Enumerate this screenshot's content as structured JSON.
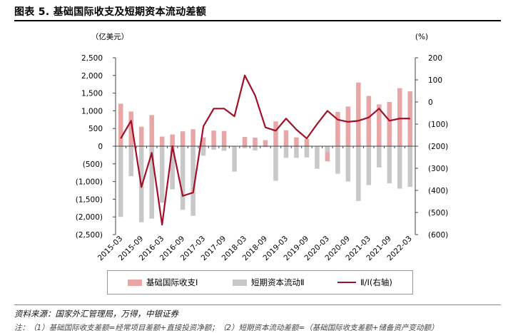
{
  "figure": {
    "title": "图表 5. 基础国际收支及短期资本流动差额",
    "source": "资料来源：国家外汇管理局，万得，中银证券",
    "note": "注：（1）基础国际收支差额=经常项目差额+直接投资净额；（2）短期资本流动差额=（基础国际收支差额+储备资产变动额）"
  },
  "chart_data": {
    "type": "bar",
    "left_unit": "（亿美元）",
    "right_unit": "(%)",
    "left_axis": {
      "ylim": [
        -2500,
        2500
      ],
      "ticks": [
        2500,
        2000,
        1500,
        1000,
        500,
        0,
        -500,
        -1000,
        -1500,
        -2000,
        -2500
      ],
      "tick_labels": [
        "2,500",
        "2,000",
        "1,500",
        "1,000",
        "500",
        "0",
        "(500)",
        "(1,000)",
        "(1,500)",
        "(2,000)",
        "(2,500)"
      ]
    },
    "right_axis": {
      "ylim": [
        -600,
        200
      ],
      "ticks": [
        200,
        100,
        0,
        -100,
        -200,
        -300,
        -400,
        -500,
        -600
      ],
      "tick_labels": [
        "200",
        "100",
        "0",
        "(100)",
        "(200)",
        "(300)",
        "(400)",
        "(500)",
        "(600)"
      ]
    },
    "categories": [
      "2015-03",
      "2015-06",
      "2015-09",
      "2015-12",
      "2016-03",
      "2016-06",
      "2016-09",
      "2016-12",
      "2017-03",
      "2017-06",
      "2017-09",
      "2017-12",
      "2018-03",
      "2018-06",
      "2018-09",
      "2018-12",
      "2019-03",
      "2019-06",
      "2019-09",
      "2019-12",
      "2020-03",
      "2020-06",
      "2020-09",
      "2020-12",
      "2021-03",
      "2021-06",
      "2021-09",
      "2021-12",
      "2022-03"
    ],
    "x_tick_labels": [
      "2015-03",
      "",
      "2015-09",
      "",
      "2016-03",
      "",
      "2016-09",
      "",
      "2017-03",
      "",
      "2017-09",
      "",
      "2018-03",
      "",
      "2018-09",
      "",
      "2019-03",
      "",
      "2019-09",
      "",
      "2020-03",
      "",
      "2020-09",
      "",
      "2021-03",
      "",
      "2021-09",
      "",
      "2022-03"
    ],
    "series": [
      {
        "name": "基础国际收支Ⅰ",
        "axis": "left",
        "kind": "bar",
        "color": "#e8a6a6",
        "values": [
          1200,
          980,
          550,
          880,
          270,
          330,
          420,
          480,
          250,
          440,
          430,
          0,
          260,
          240,
          170,
          700,
          450,
          250,
          200,
          0,
          -430,
          970,
          1120,
          1800,
          1420,
          1180,
          1250,
          1640,
          1550
        ]
      },
      {
        "name": "短期资本流动Ⅱ",
        "axis": "left",
        "kind": "bar",
        "color": "#c8c8c8",
        "values": [
          -2000,
          -850,
          -2150,
          -2050,
          -1600,
          -1220,
          -1800,
          -1970,
          -270,
          -100,
          -130,
          -720,
          -60,
          -120,
          -30,
          -980,
          -330,
          -330,
          -320,
          -640,
          -170,
          -780,
          -1000,
          -1550,
          -1100,
          -600,
          -1050,
          -1200,
          -1150
        ]
      },
      {
        "name": "Ⅱ/Ⅰ(右轴)",
        "axis": "right",
        "kind": "line",
        "color": "#a30f28",
        "values": [
          -165,
          -85,
          -385,
          -230,
          -555,
          -200,
          -425,
          -410,
          -110,
          -30,
          -30,
          -65,
          120,
          30,
          -115,
          -130,
          -75,
          -125,
          -165,
          -100,
          -40,
          -80,
          -90,
          -85,
          -70,
          -30,
          -85,
          -75,
          -75
        ]
      }
    ],
    "grid": false,
    "legend_position": "bottom"
  }
}
